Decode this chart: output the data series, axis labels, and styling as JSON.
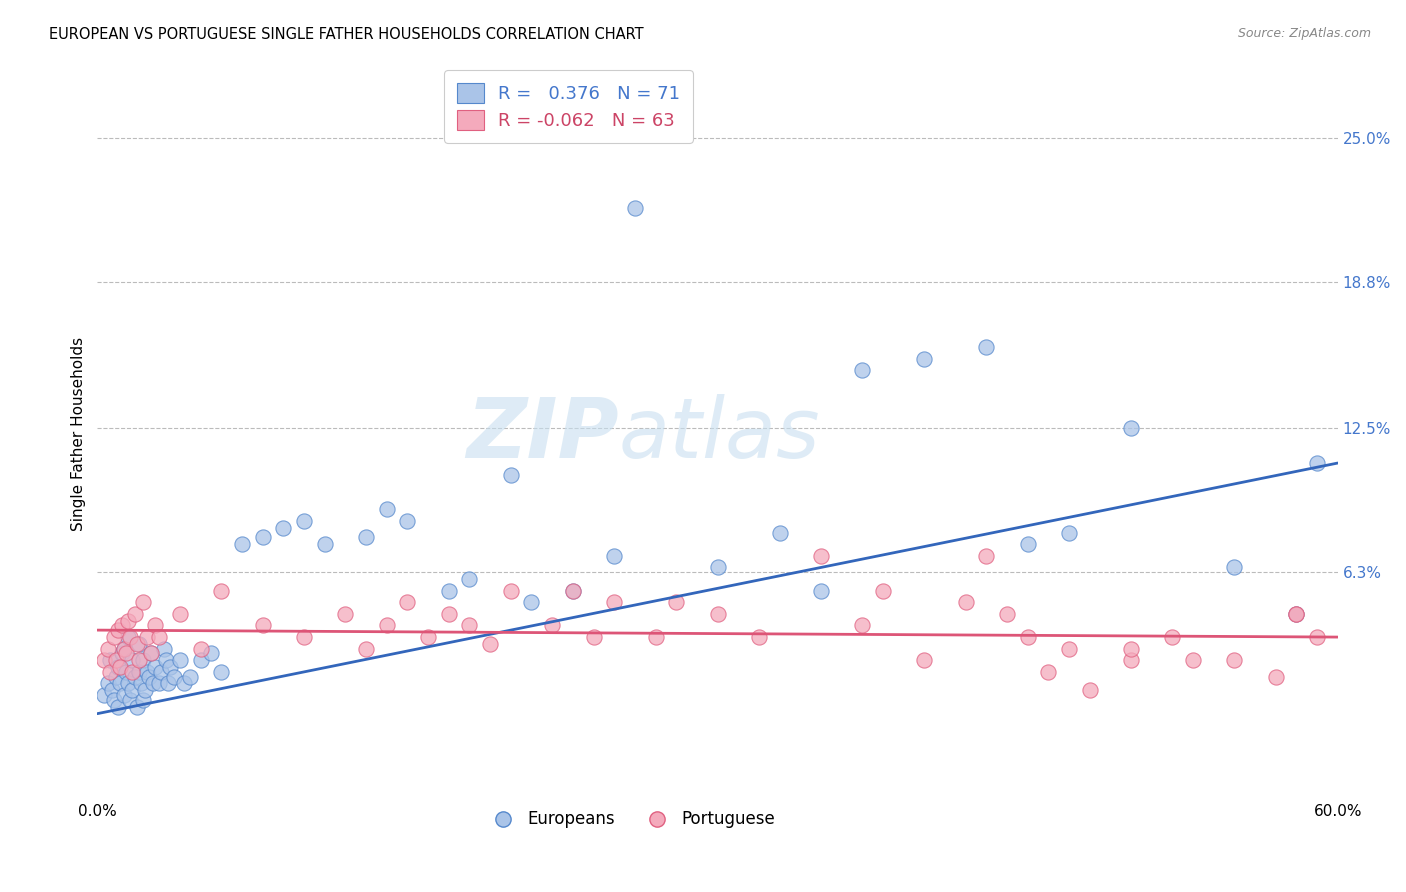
{
  "title": "EUROPEAN VS PORTUGUESE SINGLE FATHER HOUSEHOLDS CORRELATION CHART",
  "source": "Source: ZipAtlas.com",
  "ylabel": "Single Father Households",
  "ytick_labels": [
    "6.3%",
    "12.5%",
    "18.8%",
    "25.0%"
  ],
  "ytick_values": [
    6.3,
    12.5,
    18.8,
    25.0
  ],
  "xlim": [
    0.0,
    60.0
  ],
  "ylim": [
    -3.5,
    28.0
  ],
  "blue_R": 0.376,
  "blue_N": 71,
  "pink_R": -0.062,
  "pink_N": 63,
  "blue_color": "#aac4e8",
  "pink_color": "#f4aabc",
  "blue_edge_color": "#5588cc",
  "pink_edge_color": "#e06080",
  "blue_line_color": "#3366bb",
  "pink_line_color": "#dd5577",
  "watermark_color": "#c8dff0",
  "watermark": "ZIPatlas",
  "blue_scatter_x": [
    0.3,
    0.5,
    0.6,
    0.7,
    0.8,
    0.9,
    1.0,
    1.0,
    1.1,
    1.2,
    1.3,
    1.3,
    1.4,
    1.5,
    1.5,
    1.6,
    1.7,
    1.7,
    1.8,
    1.9,
    2.0,
    2.0,
    2.1,
    2.2,
    2.2,
    2.3,
    2.4,
    2.5,
    2.6,
    2.7,
    2.8,
    3.0,
    3.1,
    3.2,
    3.3,
    3.4,
    3.5,
    3.7,
    4.0,
    4.2,
    4.5,
    5.0,
    5.5,
    6.0,
    7.0,
    8.0,
    9.0,
    10.0,
    11.0,
    13.0,
    14.0,
    15.0,
    17.0,
    18.0,
    20.0,
    21.0,
    23.0,
    25.0,
    26.0,
    30.0,
    33.0,
    35.0,
    37.0,
    40.0,
    43.0,
    45.0,
    47.0,
    50.0,
    55.0,
    58.0,
    59.0
  ],
  "blue_scatter_y": [
    1.0,
    1.5,
    2.5,
    1.2,
    0.8,
    1.8,
    2.2,
    0.5,
    1.5,
    2.8,
    1.0,
    3.0,
    2.0,
    1.5,
    3.5,
    0.8,
    2.5,
    1.2,
    1.8,
    0.5,
    2.0,
    3.2,
    1.5,
    0.8,
    2.5,
    1.2,
    2.0,
    1.8,
    2.8,
    1.5,
    2.2,
    1.5,
    2.0,
    3.0,
    2.5,
    1.5,
    2.2,
    1.8,
    2.5,
    1.5,
    1.8,
    2.5,
    2.8,
    2.0,
    7.5,
    7.8,
    8.2,
    8.5,
    7.5,
    7.8,
    9.0,
    8.5,
    5.5,
    6.0,
    10.5,
    5.0,
    5.5,
    7.0,
    22.0,
    6.5,
    8.0,
    5.5,
    15.0,
    15.5,
    16.0,
    7.5,
    8.0,
    12.5,
    6.5,
    4.5,
    11.0
  ],
  "pink_scatter_x": [
    0.3,
    0.5,
    0.6,
    0.8,
    0.9,
    1.0,
    1.1,
    1.2,
    1.3,
    1.4,
    1.5,
    1.6,
    1.7,
    1.8,
    1.9,
    2.0,
    2.2,
    2.4,
    2.6,
    2.8,
    3.0,
    4.0,
    5.0,
    6.0,
    8.0,
    10.0,
    12.0,
    13.0,
    14.0,
    15.0,
    16.0,
    17.0,
    18.0,
    19.0,
    20.0,
    22.0,
    23.0,
    24.0,
    25.0,
    27.0,
    28.0,
    30.0,
    32.0,
    35.0,
    37.0,
    38.0,
    40.0,
    42.0,
    44.0,
    45.0,
    47.0,
    50.0,
    52.0,
    55.0,
    57.0,
    58.0,
    59.0,
    43.0,
    46.0,
    48.0,
    50.0,
    53.0,
    58.0
  ],
  "pink_scatter_y": [
    2.5,
    3.0,
    2.0,
    3.5,
    2.5,
    3.8,
    2.2,
    4.0,
    3.0,
    2.8,
    4.2,
    3.5,
    2.0,
    4.5,
    3.2,
    2.5,
    5.0,
    3.5,
    2.8,
    4.0,
    3.5,
    4.5,
    3.0,
    5.5,
    4.0,
    3.5,
    4.5,
    3.0,
    4.0,
    5.0,
    3.5,
    4.5,
    4.0,
    3.2,
    5.5,
    4.0,
    5.5,
    3.5,
    5.0,
    3.5,
    5.0,
    4.5,
    3.5,
    7.0,
    4.0,
    5.5,
    2.5,
    5.0,
    4.5,
    3.5,
    3.0,
    2.5,
    3.5,
    2.5,
    1.8,
    4.5,
    3.5,
    7.0,
    2.0,
    1.2,
    3.0,
    2.5,
    4.5
  ],
  "blue_line_x0": 0.0,
  "blue_line_y0": 0.2,
  "blue_line_x1": 60.0,
  "blue_line_y1": 11.0,
  "pink_line_x0": 0.0,
  "pink_line_y0": 3.8,
  "pink_line_x1": 60.0,
  "pink_line_y1": 3.5
}
